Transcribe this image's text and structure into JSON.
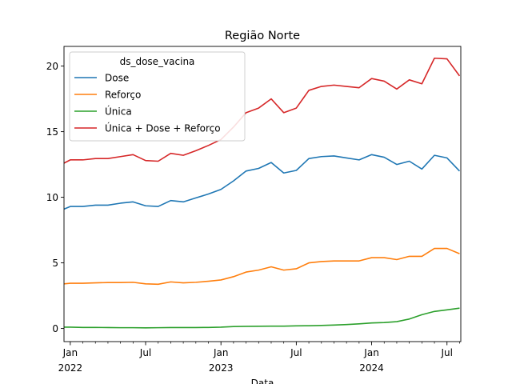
{
  "chart_data": {
    "type": "line",
    "title": "Região Norte",
    "xlabel": "Data",
    "ylabel": "",
    "xlim": [
      "2021-12",
      "2024-08"
    ],
    "ylim": [
      -1,
      21.5
    ],
    "y_ticks": [
      0,
      5,
      10,
      15,
      20
    ],
    "x_ticks": [
      {
        "x": "2022-01",
        "label": "Jan",
        "year": "2022"
      },
      {
        "x": "2022-07",
        "label": "Jul",
        "year": ""
      },
      {
        "x": "2023-01",
        "label": "Jan",
        "year": "2023"
      },
      {
        "x": "2023-07",
        "label": "Jul",
        "year": ""
      },
      {
        "x": "2024-01",
        "label": "Jan",
        "year": "2024"
      },
      {
        "x": "2024-07",
        "label": "Jul",
        "year": ""
      }
    ],
    "grid": false,
    "legend": {
      "title": "ds_dose_vacina",
      "placement": "top-left"
    },
    "x": [
      "2021-12",
      "2022-01",
      "2022-02",
      "2022-03",
      "2022-04",
      "2022-05",
      "2022-06",
      "2022-07",
      "2022-08",
      "2022-09",
      "2022-10",
      "2022-11",
      "2022-12",
      "2023-01",
      "2023-02",
      "2023-03",
      "2023-04",
      "2023-05",
      "2023-06",
      "2023-07",
      "2023-08",
      "2023-09",
      "2023-10",
      "2023-11",
      "2023-12",
      "2024-01",
      "2024-02",
      "2024-03",
      "2024-04",
      "2024-05",
      "2024-06",
      "2024-07",
      "2024-08"
    ],
    "series": [
      {
        "name": "Dose",
        "color": "#1f77b4",
        "values": [
          8.9,
          9.3,
          9.3,
          9.4,
          9.4,
          9.55,
          9.65,
          9.35,
          9.3,
          9.75,
          9.65,
          9.95,
          10.25,
          10.6,
          11.25,
          12.0,
          12.2,
          12.65,
          11.85,
          12.05,
          12.95,
          13.1,
          13.15,
          13.0,
          12.85,
          13.25,
          13.05,
          12.5,
          12.75,
          12.15,
          13.2,
          13.0,
          12.0
        ]
      },
      {
        "name": "Reforço",
        "color": "#ff7f0e",
        "values": [
          3.35,
          3.45,
          3.45,
          3.48,
          3.5,
          3.5,
          3.52,
          3.4,
          3.37,
          3.55,
          3.48,
          3.52,
          3.6,
          3.7,
          3.95,
          4.3,
          4.45,
          4.7,
          4.45,
          4.55,
          5.0,
          5.1,
          5.15,
          5.15,
          5.15,
          5.4,
          5.4,
          5.25,
          5.5,
          5.5,
          6.1,
          6.1,
          5.7
        ]
      },
      {
        "name": "Única",
        "color": "#2ca02c",
        "values": [
          0.1,
          0.1,
          0.08,
          0.08,
          0.07,
          0.06,
          0.06,
          0.05,
          0.06,
          0.07,
          0.07,
          0.07,
          0.08,
          0.1,
          0.15,
          0.16,
          0.17,
          0.18,
          0.18,
          0.2,
          0.21,
          0.23,
          0.26,
          0.3,
          0.35,
          0.42,
          0.45,
          0.52,
          0.72,
          1.05,
          1.3,
          1.42,
          1.55
        ]
      },
      {
        "name": "Única + Dose + Reforço",
        "color": "#d62728",
        "values": [
          12.35,
          12.85,
          12.85,
          12.95,
          12.95,
          13.1,
          13.25,
          12.8,
          12.75,
          13.35,
          13.2,
          13.55,
          13.95,
          14.4,
          15.35,
          16.45,
          16.8,
          17.5,
          16.45,
          16.8,
          18.15,
          18.45,
          18.55,
          18.45,
          18.35,
          19.05,
          18.85,
          18.25,
          18.95,
          18.65,
          20.6,
          20.55,
          19.25
        ]
      }
    ]
  }
}
